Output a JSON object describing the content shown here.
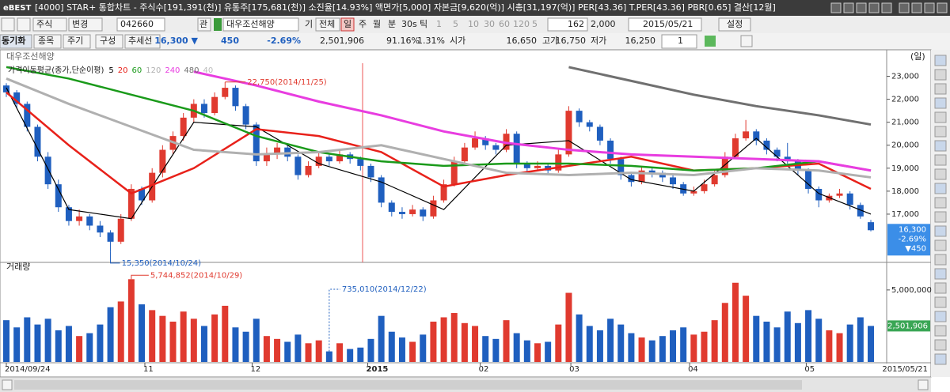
{
  "window": {
    "logo": "eBEST",
    "title": "[4000] STAR+ 통합차트 - 주식수[191,391(천)] 유통주[175,681(천)] 소진율[14.93%] 액면가[5,000] 자본금[9,620(억)] 시총[31,197(억)] PER[43.36] T.PER[43.36] PBR[0.65] 결산[12월]"
  },
  "toolbar1": {
    "market": "주식",
    "change": "변경",
    "code": "042660",
    "watch": "관",
    "name": "대우조선해양",
    "period_label": "기",
    "all": "전체",
    "periods": [
      "일",
      "주",
      "월",
      "분",
      "30s",
      "틱"
    ],
    "minutes": [
      "1",
      "5",
      "10",
      "30",
      "60",
      "120"
    ],
    "count_a": "5",
    "count_b": "162",
    "count_c": "2,000",
    "date": "2015/05/21",
    "settings": "설정"
  },
  "toolbar2": {
    "buttons": [
      "동기화",
      "종목",
      "주기",
      "구성",
      "추세선"
    ],
    "price": "16,300 ▼",
    "change": "450",
    "rate": "-2.69%",
    "volume": "2,501,906",
    "ratio1": "91.16%",
    "ratio2": "1.31%",
    "open_label": "시가",
    "open": "16,650",
    "high_label": "고가",
    "high": "16,750",
    "low_label": "저가",
    "low": "16,250",
    "spin": "1"
  },
  "chart_data": [
    {
      "type": "candlestick",
      "title": "대우조선해양",
      "period": "(일)",
      "legend_title": "가격이동평균(종가,단순이평)",
      "legend_extra": "40",
      "up_color": "#e03a2f",
      "down_color": "#1f5fbf",
      "ohlc": [
        [
          22600,
          22700,
          22100,
          22300
        ],
        [
          22300,
          22400,
          21600,
          21800
        ],
        [
          21800,
          21900,
          20600,
          20800
        ],
        [
          20800,
          20900,
          19300,
          19500
        ],
        [
          19500,
          19700,
          18100,
          18300
        ],
        [
          18300,
          18500,
          17100,
          17300
        ],
        [
          17300,
          17400,
          16500,
          16700
        ],
        [
          16700,
          17200,
          16500,
          16900
        ],
        [
          16900,
          17000,
          16300,
          16500
        ],
        [
          16500,
          16700,
          16000,
          16200
        ],
        [
          16200,
          16300,
          15350,
          15800
        ],
        [
          15800,
          17000,
          15700,
          16800
        ],
        [
          16800,
          18300,
          16700,
          18100
        ],
        [
          18100,
          18200,
          17400,
          17600
        ],
        [
          17600,
          19000,
          17500,
          18800
        ],
        [
          18800,
          20000,
          18600,
          19800
        ],
        [
          19800,
          20600,
          19600,
          20400
        ],
        [
          20400,
          21400,
          20200,
          21200
        ],
        [
          21200,
          22000,
          21000,
          21800
        ],
        [
          21800,
          22000,
          21200,
          21400
        ],
        [
          21400,
          22300,
          21300,
          22100
        ],
        [
          22100,
          22750,
          22000,
          22500
        ],
        [
          22500,
          22600,
          21500,
          21700
        ],
        [
          21700,
          21800,
          20700,
          20900
        ],
        [
          20900,
          21000,
          19100,
          19300
        ],
        [
          19300,
          19900,
          19100,
          19600
        ],
        [
          19600,
          20100,
          19400,
          19900
        ],
        [
          19900,
          20000,
          19300,
          19500
        ],
        [
          19500,
          19600,
          18500,
          18700
        ],
        [
          18700,
          19300,
          18600,
          19100
        ],
        [
          19100,
          19700,
          19000,
          19500
        ],
        [
          19500,
          19600,
          19100,
          19300
        ],
        [
          19300,
          19800,
          19200,
          19600
        ],
        [
          19600,
          19700,
          19200,
          19400
        ],
        [
          19400,
          19500,
          18900,
          19100
        ],
        [
          19100,
          19200,
          18400,
          18600
        ],
        [
          18600,
          18700,
          17300,
          17500
        ],
        [
          17500,
          17600,
          16900,
          17100
        ],
        [
          17100,
          17300,
          16800,
          17000
        ],
        [
          17000,
          17400,
          16900,
          17200
        ],
        [
          17200,
          17300,
          16700,
          16900
        ],
        [
          16900,
          17800,
          16800,
          17600
        ],
        [
          17600,
          18500,
          17500,
          18300
        ],
        [
          18300,
          19500,
          18200,
          19300
        ],
        [
          19300,
          20100,
          19200,
          19900
        ],
        [
          19900,
          20600,
          19800,
          20300
        ],
        [
          20300,
          20400,
          19800,
          20000
        ],
        [
          20000,
          20100,
          19600,
          19800
        ],
        [
          19800,
          20700,
          19700,
          20500
        ],
        [
          20500,
          20600,
          19000,
          19200
        ],
        [
          19200,
          19300,
          18800,
          19000
        ],
        [
          19000,
          19300,
          18900,
          19100
        ],
        [
          19100,
          19200,
          18700,
          18900
        ],
        [
          18900,
          19800,
          18800,
          19600
        ],
        [
          19600,
          21700,
          19500,
          21500
        ],
        [
          21500,
          21600,
          20800,
          21000
        ],
        [
          21000,
          21100,
          20600,
          20800
        ],
        [
          20800,
          20900,
          20000,
          20200
        ],
        [
          20200,
          20300,
          19200,
          19400
        ],
        [
          19400,
          19500,
          18500,
          18700
        ],
        [
          18700,
          18800,
          18200,
          18400
        ],
        [
          18400,
          19100,
          18300,
          18900
        ],
        [
          18900,
          19000,
          18600,
          18800
        ],
        [
          18800,
          18900,
          18400,
          18600
        ],
        [
          18600,
          18700,
          18100,
          18300
        ],
        [
          18300,
          18400,
          17800,
          17900
        ],
        [
          17900,
          18200,
          17800,
          18000
        ],
        [
          18000,
          18500,
          17900,
          18300
        ],
        [
          18300,
          18900,
          18200,
          18700
        ],
        [
          18700,
          19700,
          18600,
          19500
        ],
        [
          19500,
          20500,
          19400,
          20300
        ],
        [
          20300,
          21100,
          20200,
          20600
        ],
        [
          20600,
          20700,
          20000,
          20200
        ],
        [
          20200,
          20300,
          19600,
          19800
        ],
        [
          19800,
          19900,
          19300,
          19500
        ],
        [
          19500,
          20100,
          19200,
          19300
        ],
        [
          19300,
          19400,
          18700,
          18900
        ],
        [
          18900,
          19000,
          17900,
          18100
        ],
        [
          18100,
          18200,
          17300,
          17600
        ],
        [
          17600,
          17900,
          17500,
          17800
        ],
        [
          17800,
          18100,
          17700,
          17900
        ],
        [
          17900,
          18000,
          17200,
          17400
        ],
        [
          17400,
          17500,
          16800,
          16900
        ],
        [
          16650,
          16750,
          16250,
          16300
        ]
      ],
      "ma_x": [
        0,
        6,
        12,
        18,
        24,
        30,
        36,
        42,
        48,
        54,
        60,
        66,
        72,
        78,
        83
      ],
      "series": [
        {
          "name": "5",
          "color": "#000000",
          "values": [
            22500,
            17200,
            16800,
            21000,
            20800,
            19200,
            18400,
            17200,
            20000,
            20200,
            18500,
            18000,
            20300,
            17900,
            17000
          ]
        },
        {
          "name": "20",
          "color": "#e8211a",
          "values": [
            22300,
            20000,
            17900,
            19000,
            20700,
            20400,
            19700,
            18200,
            18700,
            19100,
            19500,
            18900,
            19000,
            19200,
            18100
          ]
        },
        {
          "name": "60",
          "color": "#1a9a1a",
          "values": [
            23400,
            22900,
            22200,
            21500,
            20400,
            19700,
            19300,
            19100,
            19200,
            19200,
            19100,
            18900,
            19000,
            19300,
            18900
          ]
        },
        {
          "name": "120",
          "color": "#b0b0b0",
          "values": [
            22900,
            21800,
            20800,
            19800,
            19600,
            19700,
            20000,
            19400,
            18800,
            18700,
            18800,
            18700,
            19000,
            18900,
            18600
          ]
        },
        {
          "name": "240",
          "color": "#e83de0",
          "values": [
            null,
            null,
            null,
            23200,
            22600,
            21900,
            21300,
            20600,
            20100,
            19800,
            19600,
            19500,
            19400,
            19300,
            18900
          ]
        },
        {
          "name": "480",
          "color": "#707070",
          "values": [
            null,
            null,
            null,
            null,
            null,
            null,
            null,
            null,
            null,
            23400,
            22800,
            22200,
            21700,
            21300,
            20900
          ]
        }
      ],
      "ylim": [
        14900,
        23500
      ],
      "yticks": [
        {
          "value": 17000,
          "label": "17,000"
        },
        {
          "value": 18000,
          "label": "18,000"
        },
        {
          "value": 19000,
          "label": "19,000"
        },
        {
          "value": 20000,
          "label": "20,000"
        },
        {
          "value": 21000,
          "label": "21,000"
        },
        {
          "value": 22000,
          "label": "22,000"
        },
        {
          "value": 23000,
          "label": "23,000"
        }
      ],
      "xlim": [
        0,
        83
      ],
      "annotations": [
        "22,750(2014/11/25)",
        "15,350(2014/10/24)"
      ],
      "last_tag": [
        "16,300",
        "-2.69%",
        "▼450"
      ]
    },
    {
      "type": "bar",
      "title": "거래량",
      "values": [
        2900000,
        2400000,
        3100000,
        2600000,
        3000000,
        2200000,
        2500000,
        1800000,
        2000000,
        2600000,
        3800000,
        4200000,
        5744852,
        4000000,
        3600000,
        3200000,
        2800000,
        3500000,
        3000000,
        2500000,
        3300000,
        3900000,
        2400000,
        2100000,
        3000000,
        1800000,
        1600000,
        1400000,
        1900000,
        1300000,
        1500000,
        735010,
        1300000,
        900000,
        1000000,
        1600000,
        3200000,
        2100000,
        1700000,
        1400000,
        1900000,
        2800000,
        3100000,
        3400000,
        2700000,
        2500000,
        1800000,
        1600000,
        2900000,
        2000000,
        1500000,
        1300000,
        1400000,
        2600000,
        4800000,
        3300000,
        2500000,
        2200000,
        3000000,
        2600000,
        2000000,
        1700000,
        1500000,
        1800000,
        2200000,
        2400000,
        1900000,
        2100000,
        2900000,
        4100000,
        5500000,
        4600000,
        3200000,
        2800000,
        2400000,
        3500000,
        2700000,
        3600000,
        3000000,
        2200000,
        2000000,
        2600000,
        3100000,
        2501906
      ],
      "last_label": "2,501,906",
      "ylim": [
        0,
        6200000
      ],
      "yticks": [
        {
          "value": 5000000,
          "label": "5,000,000"
        }
      ],
      "xlim": [
        0,
        83
      ],
      "xticks": [
        {
          "value": 0,
          "label": "2014/09/24"
        },
        {
          "value": 13.3,
          "label": "11"
        },
        {
          "value": 23.6,
          "label": "12"
        },
        {
          "value": 34.7,
          "label": "2015"
        },
        {
          "value": 45.5,
          "label": "02"
        },
        {
          "value": 54.2,
          "label": "03"
        },
        {
          "value": 65.6,
          "label": "04"
        },
        {
          "value": 76.8,
          "label": "05"
        }
      ],
      "right_label": "2015/05/21",
      "annotations": [
        "5,744,852(2014/10/29)",
        "735,010(2014/12/22)"
      ]
    }
  ]
}
